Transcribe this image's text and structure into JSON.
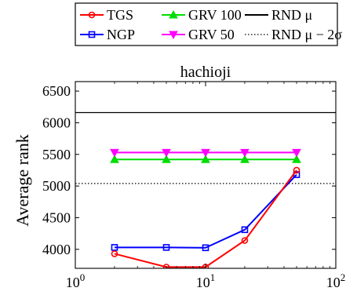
{
  "chart_data": {
    "type": "line",
    "title": "hachioji",
    "xlabel": "",
    "ylabel": "Average rank",
    "xscale": "log",
    "xlim": [
      1,
      100
    ],
    "ylim": [
      3700,
      6650
    ],
    "x_ticks": [
      {
        "base": "10",
        "exp": "0",
        "value": 1
      },
      {
        "base": "10",
        "exp": "1",
        "value": 10
      },
      {
        "base": "10",
        "exp": "2",
        "value": 100
      }
    ],
    "y_ticks": [
      4000,
      4500,
      5000,
      5500,
      6000,
      6500
    ],
    "grid": false,
    "legend_position": "top",
    "legend": [
      {
        "name": "TGS",
        "color": "#ff0000",
        "marker": "circle",
        "line": "solid"
      },
      {
        "name": "GRV 100",
        "color": "#00dd00",
        "marker": "triangle-up",
        "line": "solid"
      },
      {
        "name": "RND μ",
        "color": "#000000",
        "marker": "none",
        "line": "solid"
      },
      {
        "name": "NGP",
        "color": "#0000ff",
        "marker": "square",
        "line": "solid"
      },
      {
        "name": "GRV 50",
        "color": "#ff00ff",
        "marker": "triangle-down",
        "line": "solid"
      },
      {
        "name": "RND μ − 2σ",
        "color": "#000000",
        "marker": "none",
        "line": "dotted"
      }
    ],
    "series": [
      {
        "name": "TGS",
        "color": "#ff0000",
        "marker": "circle",
        "x": [
          2,
          5,
          10,
          20,
          50
        ],
        "y": [
          3930,
          3720,
          3720,
          4140,
          5250
        ]
      },
      {
        "name": "NGP",
        "color": "#0000ff",
        "marker": "square",
        "x": [
          2,
          5,
          10,
          20,
          50
        ],
        "y": [
          4030,
          4030,
          4025,
          4310,
          5180
        ]
      },
      {
        "name": "GRV 100",
        "color": "#00dd00",
        "marker": "triangle-up",
        "x": [
          2,
          5,
          10,
          20,
          50
        ],
        "y": [
          5420,
          5420,
          5420,
          5420,
          5420
        ]
      },
      {
        "name": "GRV 50",
        "color": "#ff00ff",
        "marker": "triangle-down",
        "x": [
          2,
          5,
          10,
          20,
          50
        ],
        "y": [
          5530,
          5530,
          5530,
          5530,
          5530
        ]
      }
    ],
    "reference_lines": [
      {
        "name": "RND μ",
        "y": 6160,
        "style": "solid",
        "color": "#000000"
      },
      {
        "name": "RND μ − 2σ",
        "y": 5040,
        "style": "dotted",
        "color": "#000000"
      }
    ]
  }
}
